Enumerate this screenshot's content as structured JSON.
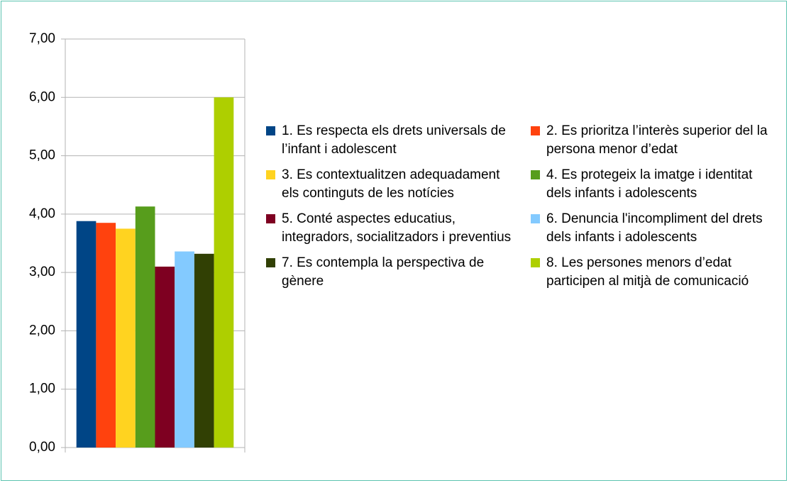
{
  "chart_data": {
    "type": "bar",
    "categories": [
      null
    ],
    "series": [
      {
        "name": "1. Es  respecta els drets universals de l’infant i adolescent",
        "color": "#004586",
        "values": [
          3.88
        ]
      },
      {
        "name": "2. Es prioritza  l’interès superior del la persona menor d’edat",
        "color": "#ff420e",
        "values": [
          3.85
        ]
      },
      {
        "name": "3. Es contextualitzen adequadament els continguts de les notícies",
        "color": "#ffd320",
        "values": [
          3.75
        ]
      },
      {
        "name": "4. Es protegeix la imatge i identitat dels infants i adolescents",
        "color": "#579d1c",
        "values": [
          4.13
        ]
      },
      {
        "name": "5. Conté aspectes educatius, integradors, socialitzadors  i preventius",
        "color": "#7e0021",
        "values": [
          3.1
        ]
      },
      {
        "name": "6. Denuncia l'incompliment del drets dels infants i adolescents",
        "color": "#83caff",
        "values": [
          3.36
        ]
      },
      {
        "name": "7. Es contempla la perspectiva de gènere",
        "color": "#314004",
        "values": [
          3.32
        ]
      },
      {
        "name": "8. Les persones menors d’edat participen al mitjà de comunicació",
        "color": "#aecf00",
        "values": [
          6.0
        ]
      }
    ],
    "ylim": [
      0,
      7
    ],
    "yticks": [
      {
        "value": 0,
        "label": "0,00"
      },
      {
        "value": 1,
        "label": "1,00"
      },
      {
        "value": 2,
        "label": "2,00"
      },
      {
        "value": 3,
        "label": "3,00"
      },
      {
        "value": 4,
        "label": "4,00"
      },
      {
        "value": 5,
        "label": "5,00"
      },
      {
        "value": 6,
        "label": "6,00"
      },
      {
        "value": 7,
        "label": "7,00"
      }
    ],
    "grid": true
  }
}
